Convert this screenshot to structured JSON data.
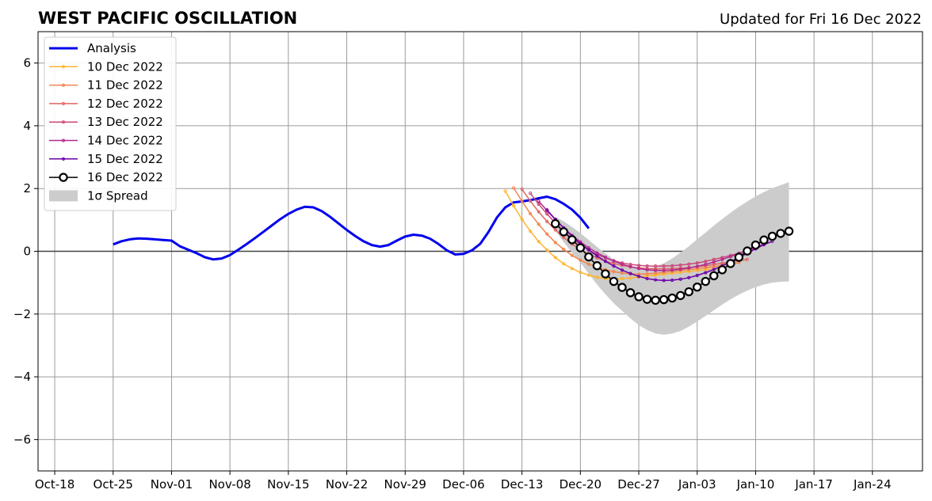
{
  "title": "WEST PACIFIC OSCILLATION",
  "updated": "Updated for Fri 16 Dec 2022",
  "chart_data": {
    "type": "line",
    "title": "WEST PACIFIC OSCILLATION",
    "xlabel": "",
    "ylabel": "",
    "x_axis_type": "date",
    "xlim": [
      "2022-10-16",
      "2023-01-30"
    ],
    "ylim": [
      -7,
      7
    ],
    "x_ticks": [
      {
        "date": "2022-10-18",
        "label": "Oct-18"
      },
      {
        "date": "2022-10-25",
        "label": "Oct-25"
      },
      {
        "date": "2022-11-01",
        "label": "Nov-01"
      },
      {
        "date": "2022-11-08",
        "label": "Nov-08"
      },
      {
        "date": "2022-11-15",
        "label": "Nov-15"
      },
      {
        "date": "2022-11-22",
        "label": "Nov-22"
      },
      {
        "date": "2022-11-29",
        "label": "Nov-29"
      },
      {
        "date": "2022-12-06",
        "label": "Dec-06"
      },
      {
        "date": "2022-12-13",
        "label": "Dec-13"
      },
      {
        "date": "2022-12-20",
        "label": "Dec-20"
      },
      {
        "date": "2022-12-27",
        "label": "Dec-27"
      },
      {
        "date": "2023-01-03",
        "label": "Jan-03"
      },
      {
        "date": "2023-01-10",
        "label": "Jan-10"
      },
      {
        "date": "2023-01-17",
        "label": "Jan-17"
      },
      {
        "date": "2023-01-24",
        "label": "Jan-24"
      }
    ],
    "y_ticks": [
      {
        "value": -6,
        "label": "−6"
      },
      {
        "value": -4,
        "label": "−4"
      },
      {
        "value": -2,
        "label": "−2"
      },
      {
        "value": 0,
        "label": "0"
      },
      {
        "value": 2,
        "label": "2"
      },
      {
        "value": 4,
        "label": "4"
      },
      {
        "value": 6,
        "label": "6"
      }
    ],
    "grid": true,
    "legend_position": "upper-left",
    "series": [
      {
        "name": "Analysis",
        "color": "#0000ee",
        "style": "thick",
        "start_date": "2022-10-25",
        "values": [
          0.22,
          0.32,
          0.38,
          0.41,
          0.4,
          0.38,
          0.36,
          0.34,
          0.16,
          0.05,
          -0.06,
          -0.19,
          -0.26,
          -0.23,
          -0.12,
          0.05,
          0.23,
          0.42,
          0.62,
          0.82,
          1.02,
          1.19,
          1.33,
          1.42,
          1.4,
          1.28,
          1.1,
          0.89,
          0.68,
          0.49,
          0.32,
          0.2,
          0.15,
          0.2,
          0.34,
          0.47,
          0.53,
          0.5,
          0.4,
          0.23,
          0.03,
          -0.1,
          -0.08,
          0.03,
          0.24,
          0.62,
          1.08,
          1.4,
          1.56,
          1.59,
          1.63,
          1.69,
          1.74,
          1.66,
          1.51,
          1.33,
          1.07,
          0.73
        ]
      },
      {
        "name": "10 Dec 2022",
        "color": "#fdb42f",
        "style": "forecast",
        "start_date": "2022-12-11",
        "values": [
          1.92,
          1.45,
          1.02,
          0.64,
          0.31,
          0.04,
          -0.2,
          -0.4,
          -0.55,
          -0.67,
          -0.76,
          -0.83,
          -0.87,
          -0.88,
          -0.87,
          -0.85,
          -0.82,
          -0.79,
          -0.76,
          -0.73,
          -0.7,
          -0.67,
          -0.64,
          -0.61,
          -0.58,
          -0.56
        ]
      },
      {
        "name": "11 Dec 2022",
        "color": "#f1844b",
        "style": "forecast",
        "start_date": "2022-12-12",
        "values": [
          2.02,
          1.6,
          1.2,
          0.86,
          0.55,
          0.28,
          0.06,
          -0.13,
          -0.28,
          -0.41,
          -0.51,
          -0.59,
          -0.65,
          -0.69,
          -0.72,
          -0.73,
          -0.72,
          -0.7,
          -0.67,
          -0.64,
          -0.61,
          -0.58,
          -0.55,
          -0.52,
          -0.49,
          -0.45,
          -0.41,
          -0.36
        ]
      },
      {
        "name": "12 Dec 2022",
        "color": "#e16462",
        "style": "forecast",
        "start_date": "2022-12-13",
        "values": [
          1.98,
          1.6,
          1.26,
          0.95,
          0.68,
          0.44,
          0.23,
          0.06,
          -0.09,
          -0.21,
          -0.31,
          -0.39,
          -0.45,
          -0.5,
          -0.53,
          -0.55,
          -0.56,
          -0.56,
          -0.55,
          -0.54,
          -0.52,
          -0.49,
          -0.46,
          -0.42,
          -0.38,
          -0.34,
          -0.3,
          -0.26
        ]
      },
      {
        "name": "13 Dec 2022",
        "color": "#cc4778",
        "style": "forecast",
        "start_date": "2022-12-14",
        "values": [
          1.85,
          1.5,
          1.19,
          0.9,
          0.64,
          0.41,
          0.21,
          0.04,
          -0.1,
          -0.21,
          -0.3,
          -0.37,
          -0.42,
          -0.45,
          -0.47,
          -0.47,
          -0.47,
          -0.46,
          -0.44,
          -0.41,
          -0.37,
          -0.32,
          -0.26,
          -0.2,
          -0.13,
          -0.06,
          0.01,
          0.08
        ]
      },
      {
        "name": "14 Dec 2022",
        "color": "#b12a90",
        "style": "forecast",
        "start_date": "2022-12-15",
        "values": [
          1.6,
          1.3,
          1.01,
          0.75,
          0.51,
          0.3,
          0.11,
          -0.05,
          -0.19,
          -0.31,
          -0.41,
          -0.49,
          -0.55,
          -0.59,
          -0.61,
          -0.61,
          -0.6,
          -0.57,
          -0.53,
          -0.48,
          -0.42,
          -0.34,
          -0.26,
          -0.17,
          -0.07,
          0.03,
          0.13,
          0.23
        ]
      },
      {
        "name": "15 Dec 2022",
        "color": "#6a00a8",
        "style": "forecast",
        "start_date": "2022-12-16",
        "values": [
          1.32,
          1.02,
          0.74,
          0.48,
          0.25,
          0.04,
          -0.15,
          -0.32,
          -0.47,
          -0.6,
          -0.71,
          -0.8,
          -0.87,
          -0.91,
          -0.93,
          -0.92,
          -0.89,
          -0.84,
          -0.77,
          -0.68,
          -0.58,
          -0.46,
          -0.33,
          -0.2,
          -0.06,
          0.08,
          0.21,
          0.32
        ]
      },
      {
        "name": "16 Dec 2022",
        "color": "#000000",
        "style": "circles",
        "start_date": "2022-12-17",
        "values": [
          0.88,
          0.62,
          0.37,
          0.11,
          -0.18,
          -0.46,
          -0.72,
          -0.96,
          -1.15,
          -1.32,
          -1.45,
          -1.53,
          -1.56,
          -1.54,
          -1.49,
          -1.41,
          -1.29,
          -1.14,
          -0.96,
          -0.78,
          -0.59,
          -0.39,
          -0.19,
          0.01,
          0.2,
          0.36,
          0.48,
          0.57,
          0.64
        ]
      }
    ],
    "spread": {
      "name": "1σ Spread",
      "color": "#cccccc",
      "start_date": "2022-12-17",
      "upper": [
        1.1,
        0.95,
        0.78,
        0.58,
        0.36,
        0.14,
        -0.07,
        -0.26,
        -0.4,
        -0.5,
        -0.55,
        -0.55,
        -0.49,
        -0.38,
        -0.23,
        -0.04,
        0.16,
        0.38,
        0.6,
        0.82,
        1.03,
        1.23,
        1.42,
        1.59,
        1.75,
        1.89,
        2.01,
        2.11,
        2.2
      ],
      "lower": [
        0.66,
        0.29,
        -0.04,
        -0.36,
        -0.72,
        -1.06,
        -1.37,
        -1.66,
        -1.9,
        -2.14,
        -2.35,
        -2.51,
        -2.62,
        -2.66,
        -2.62,
        -2.54,
        -2.4,
        -2.24,
        -2.06,
        -1.88,
        -1.7,
        -1.53,
        -1.38,
        -1.25,
        -1.14,
        -1.06,
        -1.0,
        -0.97,
        -0.96
      ]
    }
  }
}
